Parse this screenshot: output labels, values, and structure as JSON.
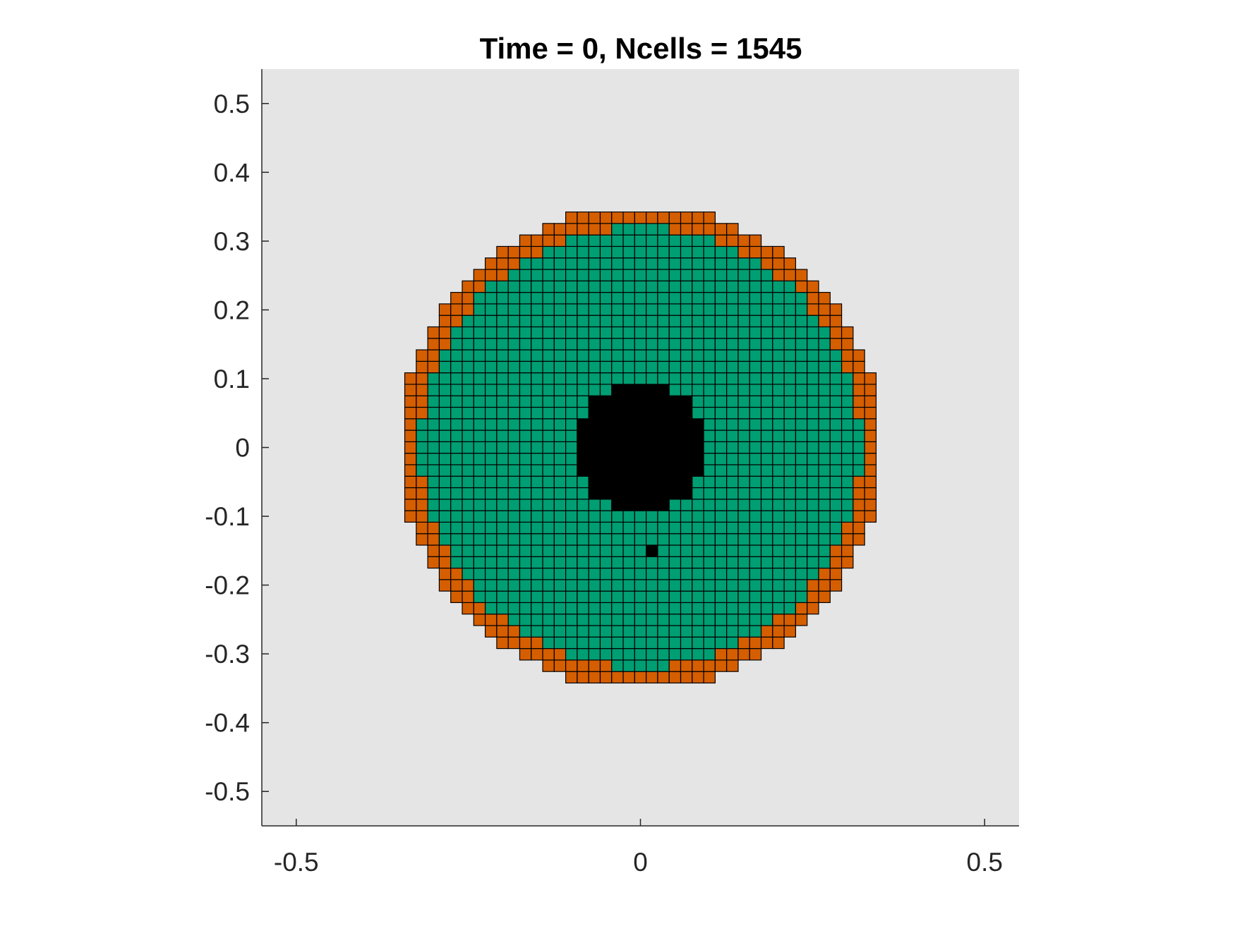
{
  "chart_data": {
    "type": "heatmap",
    "title": "Time = 0, Ncells = 1545",
    "xlabel": "",
    "ylabel": "",
    "xlim": [
      -0.55,
      0.55
    ],
    "ylim": [
      -0.55,
      0.55
    ],
    "grid": false,
    "background_color": "#e5e5e5",
    "cell_edge_color": "#000000",
    "cell_size": 0.0167,
    "colors": {
      "interior": "#009e73",
      "boundary": "#d55e00",
      "void": "#000000"
    },
    "colony": {
      "outer_radius": 0.35,
      "boundary_ring_width": 0.03
    },
    "void_region": {
      "x_range": [
        -0.09,
        0.09
      ],
      "y_range": [
        -0.09,
        0.09
      ],
      "extra_cell": [
        0.017,
        -0.15
      ]
    },
    "x_ticks": [
      {
        "value": -0.5,
        "label": "-0.5"
      },
      {
        "value": 0,
        "label": "0"
      },
      {
        "value": 0.5,
        "label": "0.5"
      }
    ],
    "y_ticks": [
      {
        "value": 0.5,
        "label": "0.5"
      },
      {
        "value": 0.4,
        "label": "0.4"
      },
      {
        "value": 0.3,
        "label": "0.3"
      },
      {
        "value": 0.2,
        "label": "0.2"
      },
      {
        "value": 0.1,
        "label": "0.1"
      },
      {
        "value": 0,
        "label": "0"
      },
      {
        "value": -0.1,
        "label": "-0.1"
      },
      {
        "value": -0.2,
        "label": "-0.2"
      },
      {
        "value": -0.3,
        "label": "-0.3"
      },
      {
        "value": -0.4,
        "label": "-0.4"
      },
      {
        "value": -0.5,
        "label": "-0.5"
      }
    ]
  }
}
